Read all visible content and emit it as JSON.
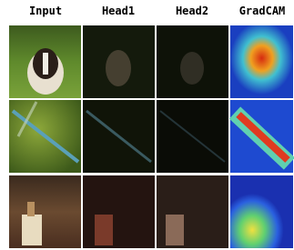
{
  "headers": [
    "Input",
    "Head1",
    "Head2",
    "GradCAM"
  ]
}
